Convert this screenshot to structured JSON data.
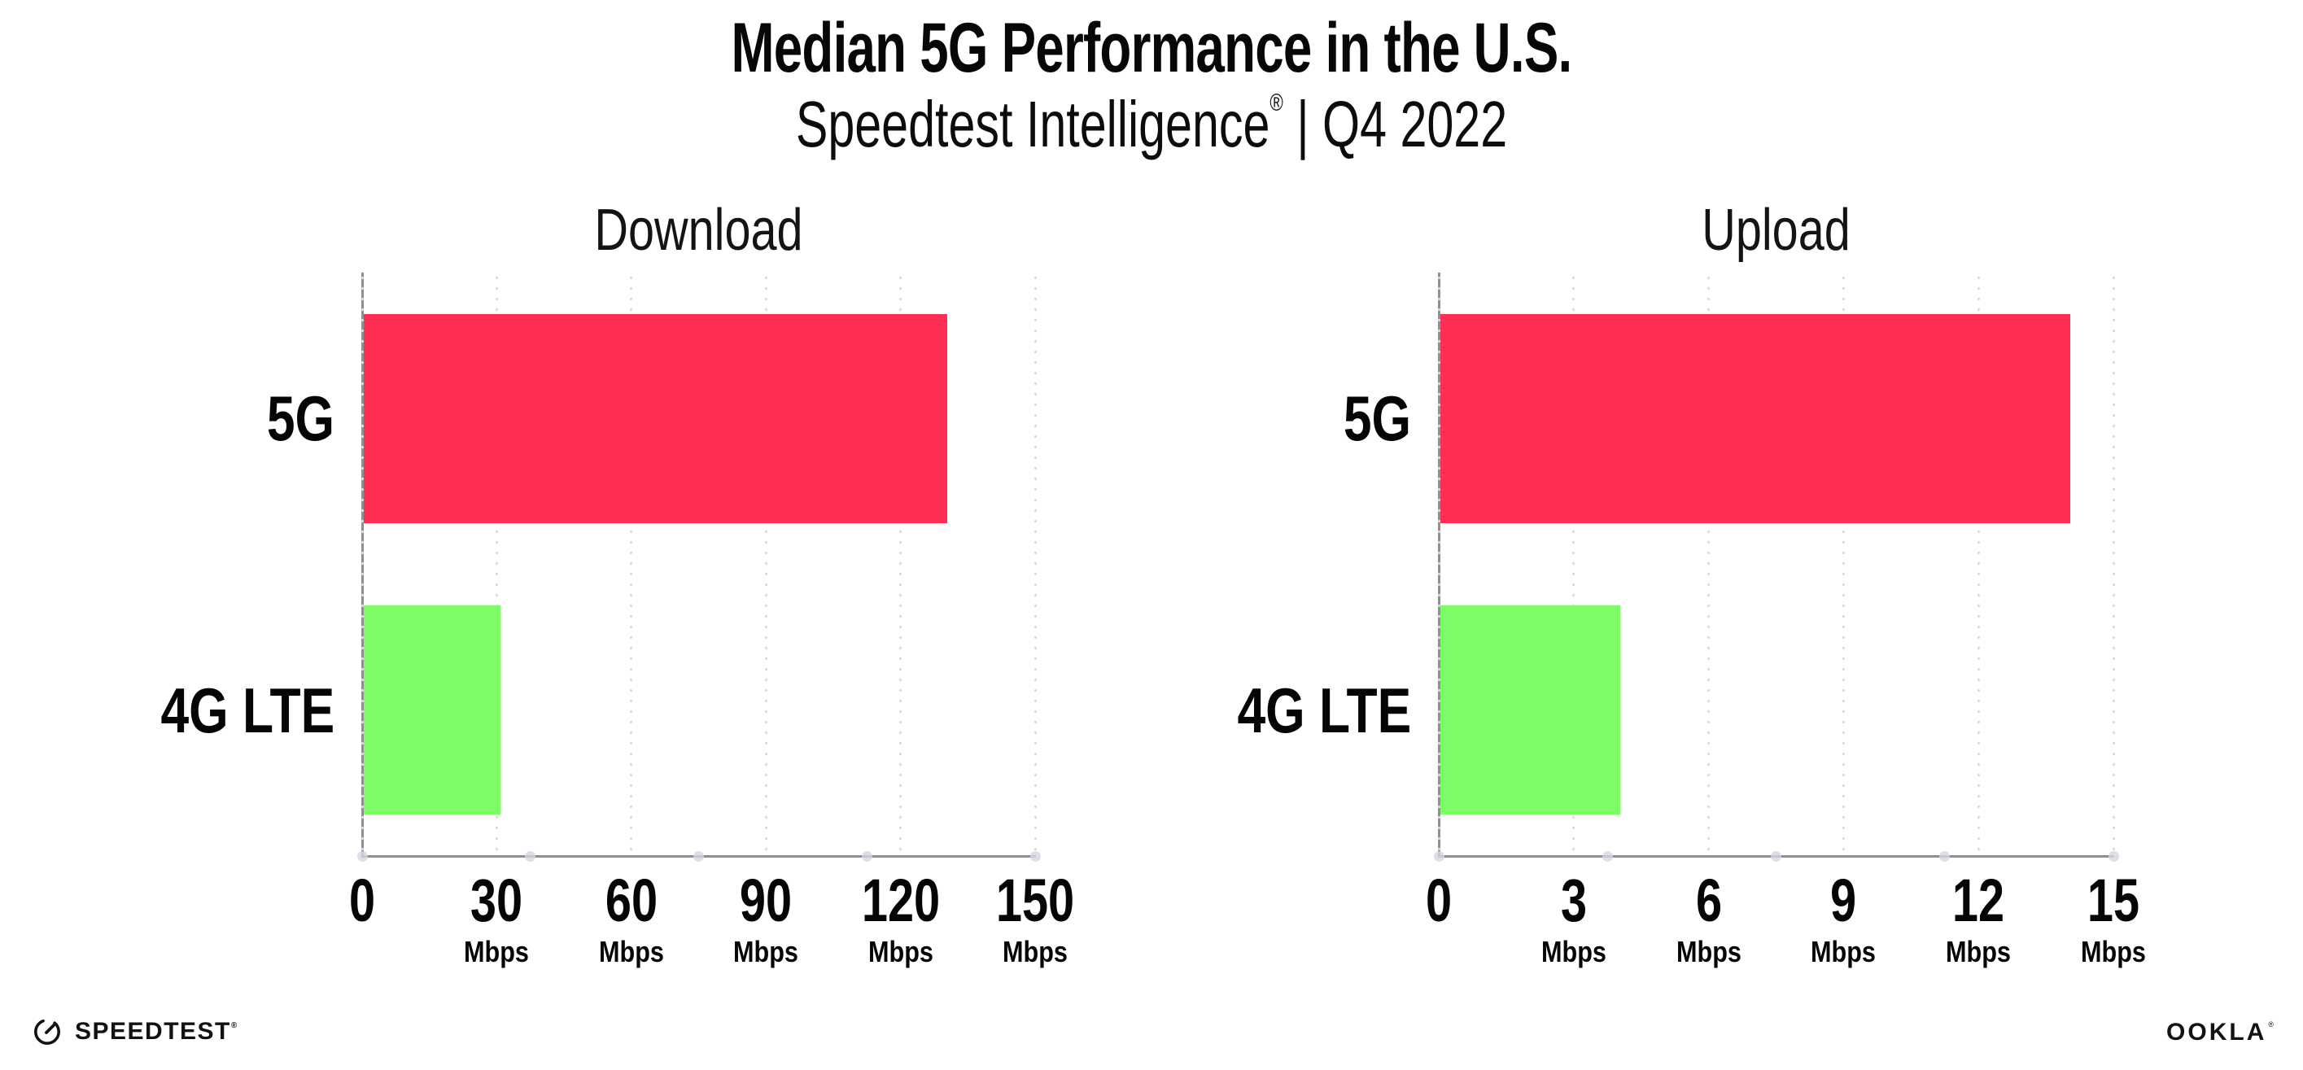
{
  "header": {
    "title": "Median 5G Performance in the U.S.",
    "subtitle_name": "Speedtest Intelligence",
    "subtitle_reg": "®",
    "subtitle_rest": " | Q4 2022"
  },
  "chart_data": [
    {
      "type": "bar",
      "orientation": "horizontal",
      "title": "Download",
      "categories": [
        "5G",
        "4G LTE"
      ],
      "values": [
        130,
        30.5
      ],
      "unit": "Mbps",
      "xlim": [
        0,
        150
      ],
      "xticks": [
        0,
        30,
        60,
        90,
        120,
        150
      ],
      "bar_colors": [
        "#ff2e55",
        "#7dfd65"
      ],
      "grid": "dotted-vertical",
      "legend": "none"
    },
    {
      "type": "bar",
      "orientation": "horizontal",
      "title": "Upload",
      "categories": [
        "5G",
        "4G LTE"
      ],
      "values": [
        14,
        4
      ],
      "unit": "Mbps",
      "xlim": [
        0,
        15
      ],
      "xticks": [
        0,
        3,
        6,
        9,
        12,
        15
      ],
      "bar_colors": [
        "#ff2e55",
        "#7dfd65"
      ],
      "grid": "dotted-vertical",
      "legend": "none"
    }
  ],
  "footer": {
    "speedtest_label": "SPEEDTEST",
    "speedtest_reg": "®",
    "ookla_label": "OOKLA",
    "ookla_reg": "®"
  },
  "colors": {
    "bar_5g": "#ff2e55",
    "bar_4g_lte": "#7dfd65",
    "axis": "#8f8f8f",
    "grid_dot": "#d9dae3",
    "background": "#ffffff"
  }
}
